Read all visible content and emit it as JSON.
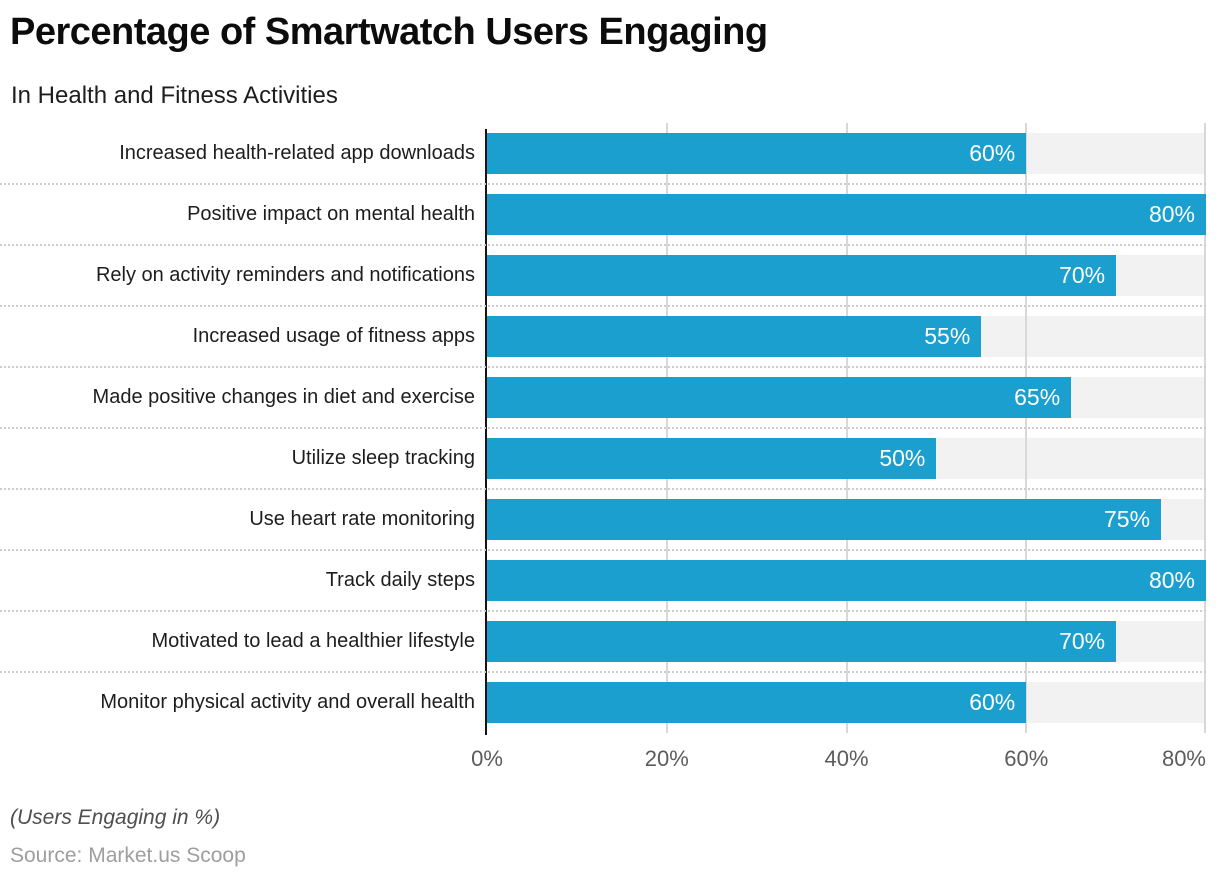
{
  "header": {
    "title": "Percentage of Smartwatch Users Engaging",
    "subtitle": "In Health and Fitness Activities"
  },
  "chart_data": {
    "type": "bar",
    "orientation": "horizontal",
    "title": "Percentage of Smartwatch Users Engaging",
    "subtitle": "In Health and Fitness Activities",
    "categories": [
      "Increased health-related app downloads",
      "Positive impact on mental health",
      "Rely on activity reminders and notifications",
      "Increased usage of fitness apps",
      "Made positive changes in diet and exercise",
      "Utilize sleep tracking",
      "Use heart rate monitoring",
      "Track daily steps",
      "Motivated to lead a healthier lifestyle",
      "Monitor physical activity and overall health"
    ],
    "values": [
      60,
      80,
      70,
      55,
      65,
      50,
      75,
      80,
      70,
      60
    ],
    "unit": "%",
    "xlabel": "",
    "ylabel": "",
    "xlim": [
      0,
      80
    ],
    "x_tick_labels": [
      "0%",
      "20%",
      "40%",
      "60%",
      "80%"
    ],
    "grid": true,
    "legend": false,
    "bar_color": "#1A9FCE",
    "track_color": "#F2F2F3",
    "value_label_color": "#FFFFFF",
    "axis_note": "(Users Engaging in %)",
    "source": "Source: Market.us Scoop"
  },
  "footer": {
    "axis_note": "(Users Engaging in %)",
    "source": "Source: Market.us Scoop"
  }
}
